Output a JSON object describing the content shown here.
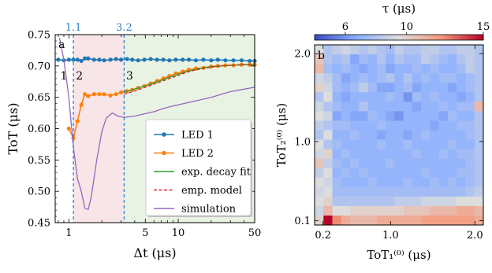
{
  "chart_data": [
    {
      "type": "line",
      "panel_label": "a",
      "xlabel": "Δt (μs)",
      "ylabel": "ToT (μs)",
      "xscale": "log",
      "xlim": [
        0.75,
        50
      ],
      "ylim": [
        0.45,
        0.75
      ],
      "x_ticks": [
        1,
        5,
        10,
        50
      ],
      "x_tick_labels": [
        "1",
        "5",
        "10",
        "50"
      ],
      "y_ticks": [
        0.45,
        0.5,
        0.55,
        0.6,
        0.65,
        0.7,
        0.75
      ],
      "y_tick_labels": [
        "0.45",
        "0.50",
        "0.55",
        "0.60",
        "0.65",
        "0.70",
        "0.75"
      ],
      "top_markers": [
        {
          "x": 1.1,
          "label": "1.1"
        },
        {
          "x": 3.2,
          "label": "3.2"
        }
      ],
      "region_labels": [
        {
          "x": 0.9,
          "y": 0.685,
          "label": "1"
        },
        {
          "x": 1.25,
          "y": 0.685,
          "label": "2"
        },
        {
          "x": 3.6,
          "y": 0.685,
          "label": "3"
        }
      ],
      "regions": [
        {
          "x_from": 1.1,
          "x_to": 3.2,
          "color": "#f8e5e7"
        },
        {
          "x_from": 3.2,
          "x_to": 50,
          "color": "#e8f3e4"
        }
      ],
      "legend_position": "lower-right",
      "series": [
        {
          "name": "LED 1",
          "color": "#1f77b4",
          "style": "line-marker",
          "x": [
            0.8,
            0.9,
            1.0,
            1.1,
            1.2,
            1.3,
            1.4,
            1.5,
            1.7,
            1.9,
            2.1,
            2.4,
            2.7,
            3.0,
            3.4,
            3.8,
            4.3,
            4.9,
            5.6,
            6.4,
            7.3,
            8.3,
            9.5,
            11,
            12.5,
            14.5,
            17,
            20,
            23,
            27,
            32,
            38,
            45,
            50
          ],
          "y": [
            0.71,
            0.709,
            0.71,
            0.71,
            0.71,
            0.708,
            0.712,
            0.712,
            0.71,
            0.71,
            0.709,
            0.71,
            0.711,
            0.71,
            0.711,
            0.71,
            0.709,
            0.71,
            0.711,
            0.71,
            0.71,
            0.709,
            0.71,
            0.71,
            0.71,
            0.709,
            0.71,
            0.709,
            0.71,
            0.709,
            0.709,
            0.709,
            0.708,
            0.708
          ]
        },
        {
          "name": "LED 2",
          "color": "#ff7f0e",
          "style": "line-marker",
          "x": [
            1.0,
            1.1,
            1.2,
            1.3,
            1.4,
            1.5,
            1.7,
            1.9,
            2.1,
            2.4,
            2.7,
            3.0,
            3.4,
            3.8,
            4.3,
            4.9,
            5.6,
            6.4,
            7.3,
            8.3,
            9.5,
            11,
            12.5,
            14.5,
            17,
            20,
            23,
            27,
            32,
            38,
            45,
            50
          ],
          "y": [
            0.6,
            0.585,
            0.612,
            0.638,
            0.655,
            0.652,
            0.655,
            0.655,
            0.655,
            0.653,
            0.655,
            0.658,
            0.66,
            0.662,
            0.665,
            0.668,
            0.672,
            0.676,
            0.68,
            0.684,
            0.688,
            0.691,
            0.694,
            0.696,
            0.697,
            0.699,
            0.7,
            0.701,
            0.701,
            0.702,
            0.702,
            0.702
          ]
        },
        {
          "name": "exp. decay fit",
          "color": "#2ca02c",
          "style": "line",
          "x": [
            3.2,
            4,
            5,
            6,
            7,
            8,
            9,
            10,
            12,
            14,
            17,
            20,
            25,
            30,
            40,
            50
          ],
          "y": [
            0.658,
            0.663,
            0.668,
            0.673,
            0.677,
            0.681,
            0.684,
            0.687,
            0.691,
            0.694,
            0.697,
            0.699,
            0.7,
            0.701,
            0.702,
            0.702
          ]
        },
        {
          "name": "emp. model",
          "color": "#d62728",
          "style": "dashed",
          "x": [
            3.2,
            4,
            5,
            6,
            7,
            8,
            9,
            10,
            12,
            14,
            17,
            20,
            25,
            30,
            40,
            50
          ],
          "y": [
            0.655,
            0.66,
            0.666,
            0.671,
            0.675,
            0.679,
            0.682,
            0.685,
            0.69,
            0.693,
            0.696,
            0.698,
            0.7,
            0.701,
            0.702,
            0.703
          ]
        },
        {
          "name": "simulation",
          "color": "#9467bd",
          "style": "line",
          "x": [
            0.82,
            0.9,
            1.0,
            1.1,
            1.2,
            1.3,
            1.4,
            1.5,
            1.6,
            1.8,
            2.0,
            2.2,
            2.5,
            2.8,
            3.2,
            3.6,
            4.0,
            5,
            6,
            7,
            8,
            10,
            12,
            15,
            20,
            25,
            30,
            40,
            50
          ],
          "y": [
            0.745,
            0.71,
            0.65,
            0.57,
            0.52,
            0.5,
            0.473,
            0.471,
            0.49,
            0.55,
            0.595,
            0.617,
            0.625,
            0.62,
            0.618,
            0.619,
            0.62,
            0.624,
            0.627,
            0.631,
            0.634,
            0.638,
            0.641,
            0.645,
            0.65,
            0.655,
            0.659,
            0.663,
            0.666
          ]
        }
      ]
    },
    {
      "type": "heatmap",
      "panel_label": "b",
      "xlabel": "ToT₁⁽⁰⁾ (μs)",
      "ylabel": "ToT₂⁽⁰⁾ (μs)",
      "x_ticks": [
        0.2,
        1.0,
        2.0
      ],
      "x_tick_labels": [
        "0.2",
        "1.0",
        "2.0"
      ],
      "y_ticks": [
        0.1,
        1.0,
        2.0
      ],
      "y_tick_labels": [
        "0.1",
        "1.0",
        "2.0"
      ],
      "colorbar": {
        "label": "τ (μs)",
        "position": "top",
        "range": [
          4,
          15
        ],
        "ticks": [
          6,
          10,
          15
        ],
        "tick_labels": [
          "6",
          "10",
          "15"
        ],
        "colormap": "coolwarm"
      },
      "grid_size": [
        19,
        19
      ],
      "values_note_rows_top_to_bottom": [
        [
          9.5,
          8.0,
          8.5,
          9.0,
          8.5,
          8.0,
          8.5,
          8.0,
          7.5,
          8.5,
          8.0,
          8.0,
          8.5,
          8.5,
          8.0,
          8.0,
          8.5,
          8.5,
          8.0
        ],
        [
          10.5,
          8.0,
          7.5,
          8.0,
          6.5,
          7.5,
          7.0,
          8.0,
          7.0,
          8.0,
          7.5,
          7.5,
          8.5,
          8.0,
          7.5,
          7.0,
          8.0,
          8.5,
          8.0
        ],
        [
          11.0,
          7.5,
          7.0,
          7.5,
          7.0,
          6.5,
          7.0,
          7.5,
          6.5,
          7.0,
          7.0,
          7.5,
          7.0,
          7.5,
          7.0,
          7.0,
          7.5,
          8.5,
          8.0
        ],
        [
          9.0,
          8.5,
          7.5,
          6.5,
          7.0,
          7.5,
          7.0,
          7.5,
          8.0,
          7.0,
          8.0,
          7.0,
          7.5,
          7.0,
          7.5,
          7.5,
          7.0,
          7.5,
          8.0
        ],
        [
          10.0,
          9.0,
          7.5,
          7.0,
          7.5,
          8.5,
          7.5,
          6.5,
          6.5,
          7.0,
          7.5,
          6.5,
          7.0,
          7.0,
          7.0,
          6.5,
          7.0,
          7.5,
          8.0
        ],
        [
          8.0,
          9.5,
          7.0,
          6.5,
          7.0,
          7.0,
          7.0,
          7.0,
          7.5,
          7.0,
          6.0,
          7.5,
          7.0,
          7.5,
          7.0,
          7.0,
          6.5,
          7.0,
          8.0
        ],
        [
          9.0,
          8.0,
          7.5,
          7.0,
          7.0,
          8.0,
          7.0,
          7.0,
          7.0,
          7.0,
          7.0,
          6.5,
          7.0,
          7.0,
          7.5,
          7.0,
          7.5,
          7.5,
          11.0
        ],
        [
          9.5,
          9.0,
          6.5,
          7.0,
          6.5,
          6.5,
          7.5,
          7.0,
          6.5,
          6.0,
          7.0,
          7.0,
          7.0,
          7.0,
          6.5,
          7.5,
          7.0,
          7.0,
          8.0
        ],
        [
          8.5,
          8.0,
          7.5,
          7.5,
          7.0,
          7.0,
          7.0,
          7.5,
          7.0,
          7.0,
          7.0,
          7.0,
          7.0,
          6.5,
          7.0,
          7.0,
          7.5,
          7.5,
          8.0
        ],
        [
          8.0,
          9.5,
          7.0,
          7.0,
          7.5,
          7.0,
          7.0,
          6.5,
          7.0,
          7.0,
          6.5,
          7.0,
          7.5,
          7.0,
          7.0,
          7.0,
          7.0,
          7.5,
          8.0
        ],
        [
          9.5,
          8.0,
          7.5,
          7.0,
          7.0,
          7.0,
          7.0,
          7.5,
          7.0,
          7.0,
          7.5,
          7.0,
          7.0,
          7.0,
          7.0,
          7.5,
          7.0,
          7.0,
          8.0
        ],
        [
          9.0,
          10.0,
          7.0,
          7.5,
          7.0,
          7.0,
          7.0,
          7.0,
          7.0,
          7.0,
          7.0,
          7.5,
          7.0,
          7.0,
          7.5,
          7.0,
          7.5,
          7.5,
          8.0
        ],
        [
          10.5,
          8.5,
          7.5,
          7.0,
          7.5,
          7.0,
          7.0,
          7.0,
          7.5,
          7.0,
          7.0,
          7.0,
          7.0,
          7.0,
          7.0,
          7.0,
          7.0,
          7.5,
          8.0
        ],
        [
          8.5,
          9.5,
          7.0,
          7.5,
          7.0,
          7.5,
          7.0,
          7.0,
          7.0,
          7.0,
          7.0,
          7.0,
          7.5,
          7.0,
          7.0,
          7.0,
          7.5,
          7.5,
          8.0
        ],
        [
          9.5,
          9.0,
          7.5,
          7.0,
          7.0,
          7.0,
          7.5,
          7.0,
          7.0,
          7.0,
          7.5,
          7.0,
          7.0,
          7.5,
          7.0,
          7.5,
          7.0,
          7.5,
          8.0
        ],
        [
          9.0,
          9.5,
          7.5,
          7.5,
          7.5,
          7.5,
          7.5,
          7.5,
          7.5,
          7.5,
          7.5,
          7.5,
          7.5,
          7.5,
          7.5,
          7.5,
          7.5,
          8.0,
          8.5
        ],
        [
          9.5,
          10.0,
          8.0,
          8.0,
          8.0,
          8.0,
          8.0,
          8.0,
          8.0,
          8.5,
          8.5,
          8.5,
          9.0,
          9.0,
          9.0,
          9.0,
          9.5,
          9.5,
          9.5
        ],
        [
          9.0,
          11.0,
          9.5,
          9.5,
          10.0,
          10.0,
          10.0,
          10.0,
          10.0,
          10.0,
          10.5,
          10.5,
          10.5,
          11.0,
          11.0,
          11.0,
          11.5,
          11.5,
          11.0
        ],
        [
          10.0,
          15.0,
          12.5,
          11.5,
          11.0,
          11.0,
          11.0,
          11.5,
          11.5,
          11.5,
          11.5,
          11.5,
          12.0,
          12.0,
          12.0,
          12.0,
          12.0,
          12.0,
          11.5
        ]
      ]
    }
  ]
}
